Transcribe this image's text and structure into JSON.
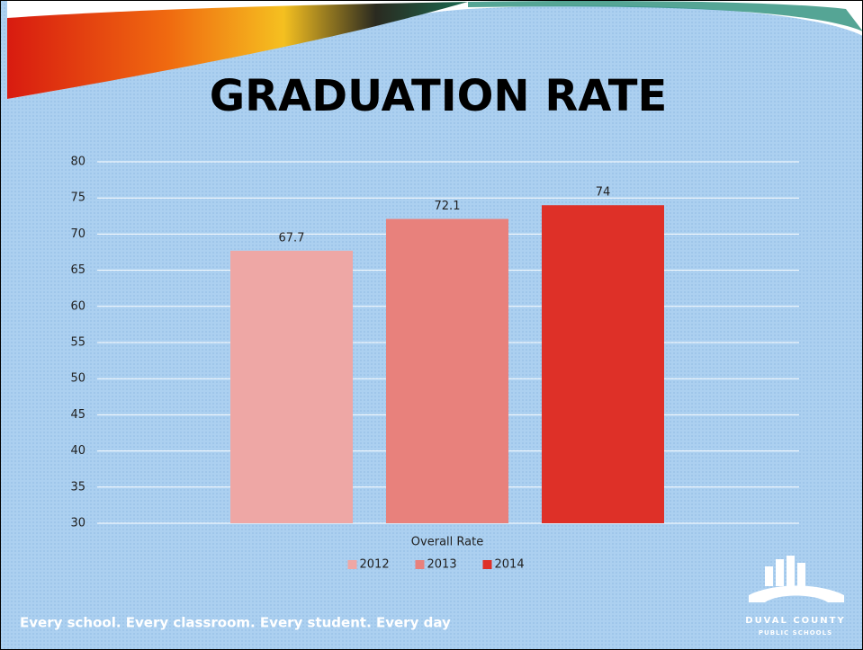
{
  "chart_data": {
    "type": "bar",
    "title": "GRADUATION RATE",
    "categories": [
      "Overall Rate"
    ],
    "series": [
      {
        "name": "2012",
        "color": "#eea7a5",
        "values": [
          67.7
        ]
      },
      {
        "name": "2013",
        "color": "#e8817c",
        "values": [
          72.1
        ]
      },
      {
        "name": "2014",
        "color": "#de3028",
        "values": [
          74
        ]
      }
    ],
    "ylim": [
      30,
      80
    ],
    "yticks": [
      30,
      35,
      40,
      45,
      50,
      55,
      60,
      65,
      70,
      75,
      80
    ],
    "grid": true,
    "legend": "bottom"
  },
  "footer": {
    "tagline": "Every school. Every classroom. Every student. Every day"
  },
  "logo": {
    "line1": "DUVAL COUNTY",
    "line2": "PUBLIC SCHOOLS"
  }
}
